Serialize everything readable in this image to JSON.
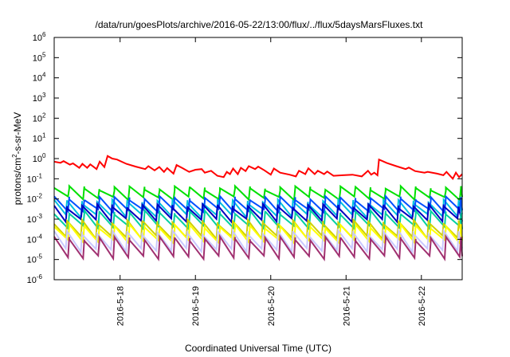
{
  "chart_data": {
    "type": "line",
    "title": "/data/run/goesPlots/archive/2016-05-22/13:00/flux/../flux/5daysMarsFluxes.txt",
    "xlabel": "Coordinated Universal Time (UTC)",
    "ylabel_parts": [
      "protons/cm",
      "2",
      "-s-sr-MeV"
    ],
    "y_scale": "log",
    "ylim": [
      1e-06,
      1000000.0
    ],
    "xlim": [
      "2016-05-17T03:00",
      "2016-05-22T13:00"
    ],
    "x_ticks": [
      {
        "date": "2016-05-18T00:00",
        "label": "2016-5-18"
      },
      {
        "date": "2016-05-19T00:00",
        "label": "2016-5-19"
      },
      {
        "date": "2016-05-20T00:00",
        "label": "2016-5-20"
      },
      {
        "date": "2016-05-21T00:00",
        "label": "2016-5-21"
      },
      {
        "date": "2016-05-22T00:00",
        "label": "2016-5-22"
      }
    ],
    "y_ticks": [
      {
        "value": 1e-06,
        "base": "10",
        "exp": "-6"
      },
      {
        "value": 1e-05,
        "base": "10",
        "exp": "-5"
      },
      {
        "value": 0.0001,
        "base": "10",
        "exp": "-4"
      },
      {
        "value": 0.001,
        "base": "10",
        "exp": "-3"
      },
      {
        "value": 0.01,
        "base": "10",
        "exp": "-2"
      },
      {
        "value": 0.1,
        "base": "10",
        "exp": "-1"
      },
      {
        "value": 1.0,
        "base": "10",
        "exp": "0"
      },
      {
        "value": 10.0,
        "base": "10",
        "exp": "1"
      },
      {
        "value": 100.0,
        "base": "10",
        "exp": "2"
      },
      {
        "value": 1000.0,
        "base": "10",
        "exp": "3"
      },
      {
        "value": 10000.0,
        "base": "10",
        "exp": "4"
      },
      {
        "value": 100000.0,
        "base": "10",
        "exp": "5"
      },
      {
        "value": 1000000.0,
        "base": "10",
        "exp": "6"
      }
    ],
    "grid": false,
    "legend": "none",
    "red_series": {
      "color": "#ff0000",
      "points": [
        [
          "2016-05-17T03:00",
          0.7
        ],
        [
          "2016-05-17T05:00",
          0.62
        ],
        [
          "2016-05-17T06:00",
          0.75
        ],
        [
          "2016-05-17T08:00",
          0.5
        ],
        [
          "2016-05-17T09:00",
          0.58
        ],
        [
          "2016-05-17T11:00",
          0.35
        ],
        [
          "2016-05-17T12:00",
          0.55
        ],
        [
          "2016-05-17T13:30",
          0.35
        ],
        [
          "2016-05-17T14:30",
          0.52
        ],
        [
          "2016-05-17T16:30",
          0.3
        ],
        [
          "2016-05-17T17:30",
          0.7
        ],
        [
          "2016-05-17T19:00",
          0.38
        ],
        [
          "2016-05-17T20:00",
          1.35
        ],
        [
          "2016-05-17T21:30",
          1.0
        ],
        [
          "2016-05-17T23:00",
          0.9
        ],
        [
          "2016-05-18T02:00",
          0.55
        ],
        [
          "2016-05-18T05:00",
          0.4
        ],
        [
          "2016-05-18T08:00",
          0.3
        ],
        [
          "2016-05-18T09:00",
          0.42
        ],
        [
          "2016-05-18T11:00",
          0.26
        ],
        [
          "2016-05-18T12:30",
          0.38
        ],
        [
          "2016-05-18T14:00",
          0.22
        ],
        [
          "2016-05-18T15:00",
          0.34
        ],
        [
          "2016-05-18T17:00",
          0.18
        ],
        [
          "2016-05-18T18:00",
          0.48
        ],
        [
          "2016-05-18T20:00",
          0.33
        ],
        [
          "2016-05-18T22:00",
          0.22
        ],
        [
          "2016-05-19T00:00",
          0.28
        ],
        [
          "2016-05-19T02:00",
          0.3
        ],
        [
          "2016-05-19T03:00",
          0.2
        ],
        [
          "2016-05-19T05:00",
          0.25
        ],
        [
          "2016-05-19T07:00",
          0.14
        ],
        [
          "2016-05-19T09:00",
          0.12
        ],
        [
          "2016-05-19T10:00",
          0.22
        ],
        [
          "2016-05-19T11:00",
          0.17
        ],
        [
          "2016-05-19T12:00",
          0.32
        ],
        [
          "2016-05-19T13:30",
          0.17
        ],
        [
          "2016-05-19T14:30",
          0.35
        ],
        [
          "2016-05-19T16:00",
          0.24
        ],
        [
          "2016-05-19T17:00",
          0.42
        ],
        [
          "2016-05-19T19:00",
          0.3
        ],
        [
          "2016-05-19T20:00",
          0.4
        ],
        [
          "2016-05-19T22:00",
          0.26
        ],
        [
          "2016-05-20T00:00",
          0.16
        ],
        [
          "2016-05-20T01:00",
          0.32
        ],
        [
          "2016-05-20T03:00",
          0.2
        ],
        [
          "2016-05-20T06:00",
          0.16
        ],
        [
          "2016-05-20T08:00",
          0.13
        ],
        [
          "2016-05-20T09:00",
          0.25
        ],
        [
          "2016-05-20T11:00",
          0.17
        ],
        [
          "2016-05-20T12:00",
          0.33
        ],
        [
          "2016-05-20T14:00",
          0.17
        ],
        [
          "2016-05-20T15:00",
          0.25
        ],
        [
          "2016-05-20T17:00",
          0.17
        ],
        [
          "2016-05-20T18:00",
          0.23
        ],
        [
          "2016-05-20T20:00",
          0.14
        ],
        [
          "2016-05-20T23:00",
          0.15
        ],
        [
          "2016-05-21T02:00",
          0.16
        ],
        [
          "2016-05-21T05:00",
          0.13
        ],
        [
          "2016-05-21T07:00",
          0.25
        ],
        [
          "2016-05-21T08:00",
          0.16
        ],
        [
          "2016-05-21T09:00",
          0.2
        ],
        [
          "2016-05-21T10:00",
          0.15
        ],
        [
          "2016-05-21T10:30",
          0.9
        ],
        [
          "2016-05-21T13:00",
          0.6
        ],
        [
          "2016-05-21T16:00",
          0.42
        ],
        [
          "2016-05-21T19:00",
          0.3
        ],
        [
          "2016-05-21T20:00",
          0.36
        ],
        [
          "2016-05-21T22:00",
          0.24
        ],
        [
          "2016-05-22T01:00",
          0.2
        ],
        [
          "2016-05-22T02:00",
          0.22
        ],
        [
          "2016-05-22T05:00",
          0.18
        ],
        [
          "2016-05-22T07:00",
          0.15
        ],
        [
          "2016-05-22T08:00",
          0.22
        ],
        [
          "2016-05-22T10:00",
          0.1
        ],
        [
          "2016-05-22T11:00",
          0.2
        ],
        [
          "2016-05-22T12:00",
          0.12
        ],
        [
          "2016-05-22T13:00",
          0.17
        ]
      ]
    },
    "sawtooth_series": [
      {
        "color": "#00e000",
        "peak": 0.035,
        "trough": 0.011
      },
      {
        "color": "#00c0e0",
        "peak": 0.0075,
        "trough": 0.0015
      },
      {
        "color": "#0050ff",
        "peak": 0.011,
        "trough": 0.0026
      },
      {
        "color": "#0000c0",
        "peak": 0.0045,
        "trough": 0.0009
      },
      {
        "color": "#00d0a0",
        "peak": 0.0022,
        "trough": 0.0004
      },
      {
        "color": "#d0d000",
        "peak": 0.00075,
        "trough": 0.00013
      },
      {
        "color": "#ffff00",
        "peak": 0.00045,
        "trough": 8e-05
      },
      {
        "color": "#c8c8ff",
        "peak": 0.00022,
        "trough": 3e-05
      },
      {
        "color": "#a03070",
        "peak": 0.00011,
        "trough": 1.3e-05
      }
    ],
    "sawtooth_period_hours": 4.8
  }
}
